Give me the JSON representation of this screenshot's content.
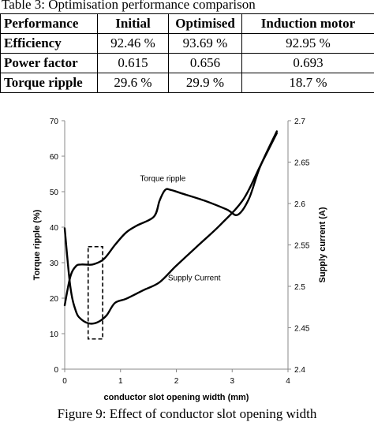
{
  "table": {
    "caption": "Table 3: Optimisation performance comparison",
    "headers": [
      "Performance",
      "Initial",
      "Optimised",
      "Induction motor"
    ],
    "rows": [
      [
        "Efficiency",
        "92.46 %",
        "93.69 %",
        "92.95 %"
      ],
      [
        "Power factor",
        "0.615",
        "0.656",
        "0.693"
      ],
      [
        "Torque ripple",
        "29.6 %",
        "29.9 %",
        "18.7 %"
      ]
    ]
  },
  "figure_caption": "Figure 9: Effect of conductor slot opening width",
  "chart_data": {
    "type": "line",
    "title": "",
    "xlabel": "conductor slot opening width (mm)",
    "ylabel": "Torque ripple (%)",
    "y2label": "Supply current (A)",
    "xlim": [
      0,
      4
    ],
    "ylim": [
      0,
      70
    ],
    "y2lim": [
      2.4,
      2.7
    ],
    "xticks": [
      "0",
      "1",
      "2",
      "3",
      "4"
    ],
    "yticks": [
      "0",
      "10",
      "20",
      "30",
      "40",
      "50",
      "60",
      "70"
    ],
    "y2ticks": [
      "2.4",
      "2.45",
      "2.5",
      "2.55",
      "2.6",
      "2.65",
      "2.7"
    ],
    "grid": false,
    "series": [
      {
        "name": "Torque ripple",
        "axis": "left",
        "color": "#000000",
        "x": [
          0.0,
          0.1,
          0.2,
          0.3,
          0.5,
          0.7,
          0.9,
          1.1,
          1.3,
          1.6,
          1.7,
          1.8,
          1.9,
          2.1,
          2.5,
          2.9,
          3.1,
          3.3,
          3.5,
          3.8
        ],
        "y": [
          18.0,
          26.0,
          29.0,
          29.5,
          29.5,
          31.0,
          35.0,
          38.5,
          40.5,
          43.0,
          47.5,
          50.5,
          50.5,
          49.5,
          47.5,
          45.0,
          43.5,
          48.0,
          57.0,
          67.0
        ]
      },
      {
        "name": "Supply Current",
        "axis": "right",
        "color": "#000000",
        "x": [
          0.0,
          0.1,
          0.2,
          0.3,
          0.45,
          0.6,
          0.75,
          0.9,
          1.1,
          1.4,
          1.7,
          2.0,
          2.4,
          2.8,
          3.2,
          3.5,
          3.8
        ],
        "y": [
          2.57,
          2.5,
          2.47,
          2.46,
          2.455,
          2.457,
          2.465,
          2.48,
          2.485,
          2.495,
          2.505,
          2.525,
          2.55,
          2.575,
          2.605,
          2.645,
          2.685
        ]
      }
    ],
    "annotations": [
      {
        "text": "Torque ripple",
        "x": 1.35,
        "y": 53
      },
      {
        "text": "Supply Current",
        "x": 1.85,
        "y": 25
      },
      {
        "type": "dashed-box",
        "x0": 0.42,
        "x1": 0.68,
        "y0": 8.5,
        "y1": 34.5
      }
    ]
  }
}
